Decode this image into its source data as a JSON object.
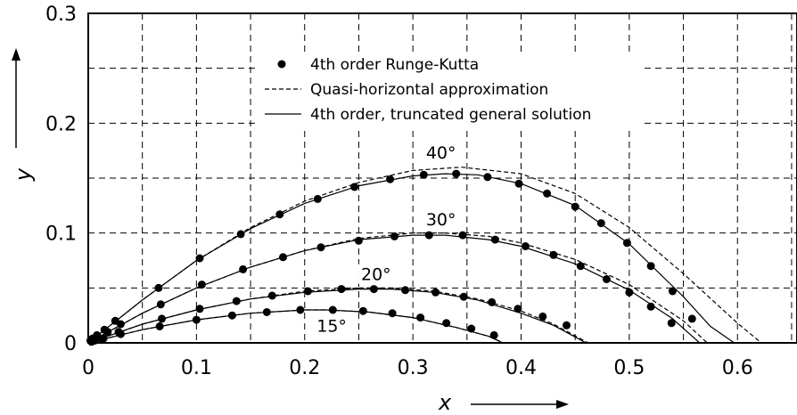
{
  "chart_data": {
    "type": "line",
    "xlabel": "x",
    "ylabel": "y",
    "xlim": [
      0,
      0.655
    ],
    "ylim": [
      0,
      0.3
    ],
    "xticks": [
      0,
      0.1,
      0.2,
      0.3,
      0.4,
      0.5,
      0.6
    ],
    "xtick_labels": [
      "0",
      "0.1",
      "0.2",
      "0.3",
      "0.4",
      "0.5",
      "0.6"
    ],
    "yticks": [
      0,
      0.1,
      0.2,
      0.3
    ],
    "ytick_labels": [
      "0",
      "0.1",
      "0.2",
      "0.3"
    ],
    "grid": true,
    "grid_step_x": 0.05,
    "grid_step_y": 0.05,
    "legend_position": "top-center",
    "legend": [
      {
        "label": "4th order Runge-Kutta",
        "marker": "dot"
      },
      {
        "label": "Quasi-horizontal approximation",
        "line": "dashed"
      },
      {
        "label": "4th order, truncated general solution",
        "line": "solid"
      }
    ],
    "annotations": [
      {
        "text": "40°",
        "x": 0.326,
        "y": 0.168
      },
      {
        "text": "30°",
        "x": 0.326,
        "y": 0.107
      },
      {
        "text": "20°",
        "x": 0.266,
        "y": 0.057
      },
      {
        "text": "15°",
        "x": 0.225,
        "y": 0.01
      }
    ],
    "series": [
      {
        "launch_angle": "40°",
        "solid": [
          [
            0,
            0
          ],
          [
            0.05,
            0.039
          ],
          [
            0.1,
            0.075
          ],
          [
            0.15,
            0.104
          ],
          [
            0.2,
            0.127
          ],
          [
            0.25,
            0.143
          ],
          [
            0.3,
            0.152
          ],
          [
            0.33,
            0.154
          ],
          [
            0.36,
            0.153
          ],
          [
            0.4,
            0.145
          ],
          [
            0.45,
            0.125
          ],
          [
            0.5,
            0.09
          ],
          [
            0.55,
            0.042
          ],
          [
            0.575,
            0.015
          ],
          [
            0.597,
            0
          ]
        ],
        "dashed": [
          [
            0,
            0
          ],
          [
            0.05,
            0.039
          ],
          [
            0.1,
            0.075
          ],
          [
            0.15,
            0.105
          ],
          [
            0.2,
            0.129
          ],
          [
            0.25,
            0.146
          ],
          [
            0.3,
            0.157
          ],
          [
            0.345,
            0.16
          ],
          [
            0.4,
            0.154
          ],
          [
            0.45,
            0.136
          ],
          [
            0.5,
            0.105
          ],
          [
            0.55,
            0.063
          ],
          [
            0.6,
            0.018
          ],
          [
            0.622,
            0
          ]
        ],
        "rk_points": [
          [
            0.002,
            0.002
          ],
          [
            0.004,
            0.004
          ],
          [
            0.008,
            0.007
          ],
          [
            0.015,
            0.012
          ],
          [
            0.025,
            0.02
          ],
          [
            0.065,
            0.05
          ],
          [
            0.103,
            0.077
          ],
          [
            0.141,
            0.099
          ],
          [
            0.177,
            0.117
          ],
          [
            0.212,
            0.131
          ],
          [
            0.246,
            0.142
          ],
          [
            0.279,
            0.149
          ],
          [
            0.31,
            0.153
          ],
          [
            0.34,
            0.154
          ],
          [
            0.369,
            0.151
          ],
          [
            0.398,
            0.145
          ],
          [
            0.424,
            0.136
          ],
          [
            0.45,
            0.124
          ],
          [
            0.474,
            0.109
          ],
          [
            0.498,
            0.091
          ],
          [
            0.52,
            0.07
          ],
          [
            0.54,
            0.047
          ],
          [
            0.558,
            0.022
          ]
        ]
      },
      {
        "launch_angle": "30°",
        "solid": [
          [
            0,
            0
          ],
          [
            0.05,
            0.027
          ],
          [
            0.1,
            0.05
          ],
          [
            0.15,
            0.069
          ],
          [
            0.2,
            0.084
          ],
          [
            0.25,
            0.094
          ],
          [
            0.3,
            0.098
          ],
          [
            0.33,
            0.098
          ],
          [
            0.37,
            0.094
          ],
          [
            0.4,
            0.088
          ],
          [
            0.45,
            0.072
          ],
          [
            0.5,
            0.048
          ],
          [
            0.54,
            0.022
          ],
          [
            0.565,
            0
          ]
        ],
        "dashed": [
          [
            0,
            0
          ],
          [
            0.05,
            0.027
          ],
          [
            0.1,
            0.05
          ],
          [
            0.15,
            0.069
          ],
          [
            0.2,
            0.084
          ],
          [
            0.25,
            0.095
          ],
          [
            0.3,
            0.1
          ],
          [
            0.33,
            0.1
          ],
          [
            0.37,
            0.097
          ],
          [
            0.4,
            0.091
          ],
          [
            0.45,
            0.076
          ],
          [
            0.5,
            0.053
          ],
          [
            0.55,
            0.02
          ],
          [
            0.572,
            0
          ]
        ],
        "rk_points": [
          [
            0.003,
            0.002
          ],
          [
            0.008,
            0.005
          ],
          [
            0.018,
            0.01
          ],
          [
            0.03,
            0.017
          ],
          [
            0.067,
            0.035
          ],
          [
            0.105,
            0.053
          ],
          [
            0.143,
            0.067
          ],
          [
            0.18,
            0.078
          ],
          [
            0.215,
            0.087
          ],
          [
            0.25,
            0.093
          ],
          [
            0.283,
            0.097
          ],
          [
            0.315,
            0.098
          ],
          [
            0.346,
            0.098
          ],
          [
            0.376,
            0.094
          ],
          [
            0.404,
            0.088
          ],
          [
            0.43,
            0.08
          ],
          [
            0.455,
            0.07
          ],
          [
            0.479,
            0.058
          ],
          [
            0.5,
            0.046
          ],
          [
            0.52,
            0.033
          ],
          [
            0.539,
            0.018
          ]
        ]
      },
      {
        "launch_angle": "20°",
        "solid": [
          [
            0,
            0
          ],
          [
            0.05,
            0.017
          ],
          [
            0.1,
            0.03
          ],
          [
            0.15,
            0.04
          ],
          [
            0.2,
            0.046
          ],
          [
            0.25,
            0.049
          ],
          [
            0.28,
            0.049
          ],
          [
            0.32,
            0.046
          ],
          [
            0.36,
            0.039
          ],
          [
            0.4,
            0.027
          ],
          [
            0.43,
            0.016
          ],
          [
            0.46,
            0
          ]
        ],
        "dashed": [
          [
            0,
            0
          ],
          [
            0.05,
            0.017
          ],
          [
            0.1,
            0.03
          ],
          [
            0.15,
            0.04
          ],
          [
            0.2,
            0.047
          ],
          [
            0.25,
            0.05
          ],
          [
            0.28,
            0.05
          ],
          [
            0.32,
            0.047
          ],
          [
            0.36,
            0.04
          ],
          [
            0.4,
            0.029
          ],
          [
            0.43,
            0.017
          ],
          [
            0.462,
            0
          ]
        ],
        "rk_points": [
          [
            0.003,
            0.001
          ],
          [
            0.012,
            0.004
          ],
          [
            0.028,
            0.01
          ],
          [
            0.068,
            0.022
          ],
          [
            0.103,
            0.031
          ],
          [
            0.137,
            0.038
          ],
          [
            0.17,
            0.043
          ],
          [
            0.203,
            0.047
          ],
          [
            0.234,
            0.049
          ],
          [
            0.264,
            0.049
          ],
          [
            0.293,
            0.048
          ],
          [
            0.321,
            0.046
          ],
          [
            0.347,
            0.042
          ],
          [
            0.373,
            0.037
          ],
          [
            0.397,
            0.031
          ],
          [
            0.42,
            0.024
          ],
          [
            0.442,
            0.016
          ]
        ]
      },
      {
        "launch_angle": "15°",
        "solid": [
          [
            0,
            0
          ],
          [
            0.05,
            0.012
          ],
          [
            0.1,
            0.021
          ],
          [
            0.15,
            0.027
          ],
          [
            0.2,
            0.03
          ],
          [
            0.22,
            0.03
          ],
          [
            0.26,
            0.028
          ],
          [
            0.3,
            0.023
          ],
          [
            0.34,
            0.014
          ],
          [
            0.37,
            0.006
          ],
          [
            0.383,
            0
          ]
        ],
        "dashed": [
          [
            0,
            0
          ],
          [
            0.05,
            0.012
          ],
          [
            0.1,
            0.021
          ],
          [
            0.15,
            0.027
          ],
          [
            0.2,
            0.03
          ],
          [
            0.22,
            0.03
          ],
          [
            0.26,
            0.028
          ],
          [
            0.3,
            0.023
          ],
          [
            0.34,
            0.014
          ],
          [
            0.37,
            0.006
          ],
          [
            0.384,
            0
          ]
        ],
        "rk_points": [
          [
            0.006,
            0.002
          ],
          [
            0.014,
            0.004
          ],
          [
            0.03,
            0.008
          ],
          [
            0.066,
            0.015
          ],
          [
            0.1,
            0.021
          ],
          [
            0.133,
            0.025
          ],
          [
            0.165,
            0.028
          ],
          [
            0.196,
            0.03
          ],
          [
            0.226,
            0.03
          ],
          [
            0.254,
            0.029
          ],
          [
            0.281,
            0.027
          ],
          [
            0.307,
            0.023
          ],
          [
            0.331,
            0.018
          ],
          [
            0.354,
            0.013
          ],
          [
            0.375,
            0.007
          ]
        ]
      }
    ]
  }
}
